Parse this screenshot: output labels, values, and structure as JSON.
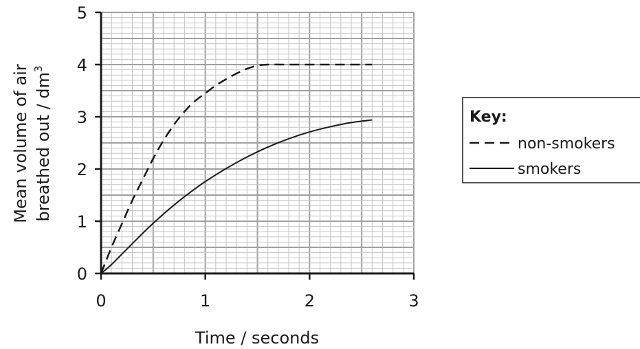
{
  "chart_data": {
    "type": "line",
    "xlabel": "Time / seconds",
    "ylabel_line1": "Mean volume of air",
    "ylabel_line2": "breathed out / dm",
    "ylabel_superscript": "3",
    "xlim": [
      0,
      3
    ],
    "ylim": [
      0,
      5
    ],
    "x_ticks": [
      "0",
      "1",
      "2",
      "3"
    ],
    "y_ticks": [
      "0",
      "1",
      "2",
      "3",
      "4",
      "5"
    ],
    "grid": true,
    "legend": {
      "title": "Key:",
      "placement": "right",
      "entries": [
        {
          "label": "non-smokers",
          "style": "dashed"
        },
        {
          "label": "smokers",
          "style": "solid"
        }
      ]
    },
    "series": [
      {
        "name": "non-smokers",
        "style": "dashed",
        "x": [
          0,
          0.1,
          0.2,
          0.3,
          0.4,
          0.5,
          0.6,
          0.7,
          0.8,
          0.9,
          1.0,
          1.1,
          1.2,
          1.3,
          1.4,
          1.5,
          1.6,
          1.8,
          2.0,
          2.2,
          2.4,
          2.6
        ],
        "y": [
          0,
          0.5,
          0.95,
          1.4,
          1.8,
          2.2,
          2.55,
          2.85,
          3.1,
          3.3,
          3.45,
          3.6,
          3.72,
          3.83,
          3.92,
          3.98,
          4.0,
          4.0,
          4.0,
          4.0,
          4.0,
          4.0
        ]
      },
      {
        "name": "smokers",
        "style": "solid",
        "x": [
          0,
          0.1,
          0.2,
          0.3,
          0.4,
          0.5,
          0.6,
          0.7,
          0.8,
          0.9,
          1.0,
          1.2,
          1.4,
          1.6,
          1.8,
          2.0,
          2.2,
          2.4,
          2.6
        ],
        "y": [
          0,
          0.17,
          0.37,
          0.57,
          0.77,
          0.96,
          1.14,
          1.31,
          1.47,
          1.62,
          1.76,
          2.01,
          2.23,
          2.42,
          2.58,
          2.71,
          2.81,
          2.89,
          2.94
        ]
      }
    ],
    "colors": {
      "line": "#1a1a1a",
      "grid_major": "#a0a0a0",
      "grid_minor": "#c4c4c4"
    }
  }
}
